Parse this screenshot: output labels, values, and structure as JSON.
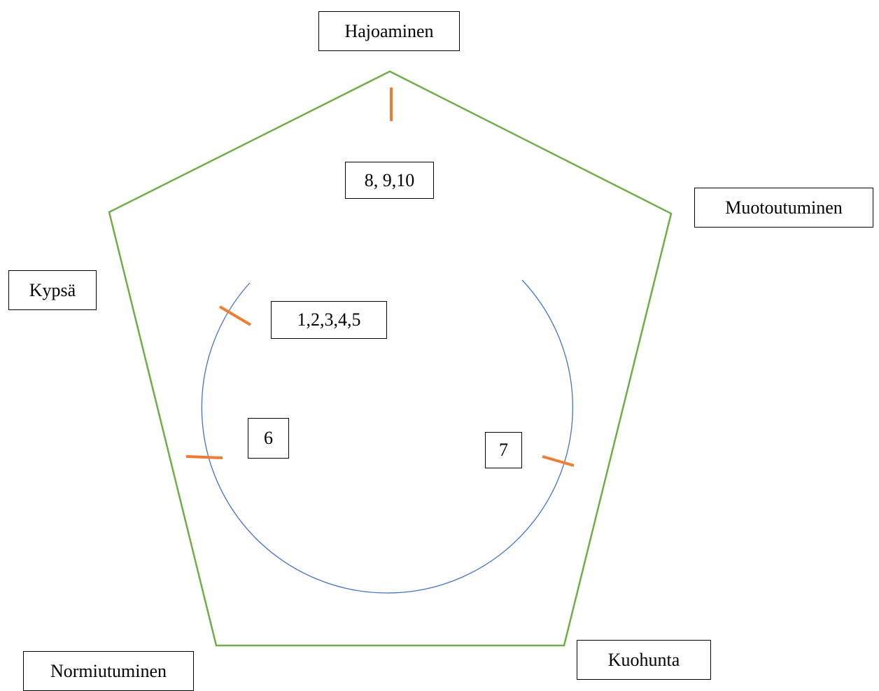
{
  "stages": [
    {
      "label": "Hajoaminen"
    },
    {
      "label": "Muotoutuminen"
    },
    {
      "label": "Kuohunta"
    },
    {
      "label": "Normiutuminen"
    },
    {
      "label": "Kypsä"
    }
  ],
  "groups": [
    {
      "label": "8, 9,10"
    },
    {
      "label": "1,2,3,4,5"
    },
    {
      "label": "6"
    },
    {
      "label": "7"
    }
  ]
}
